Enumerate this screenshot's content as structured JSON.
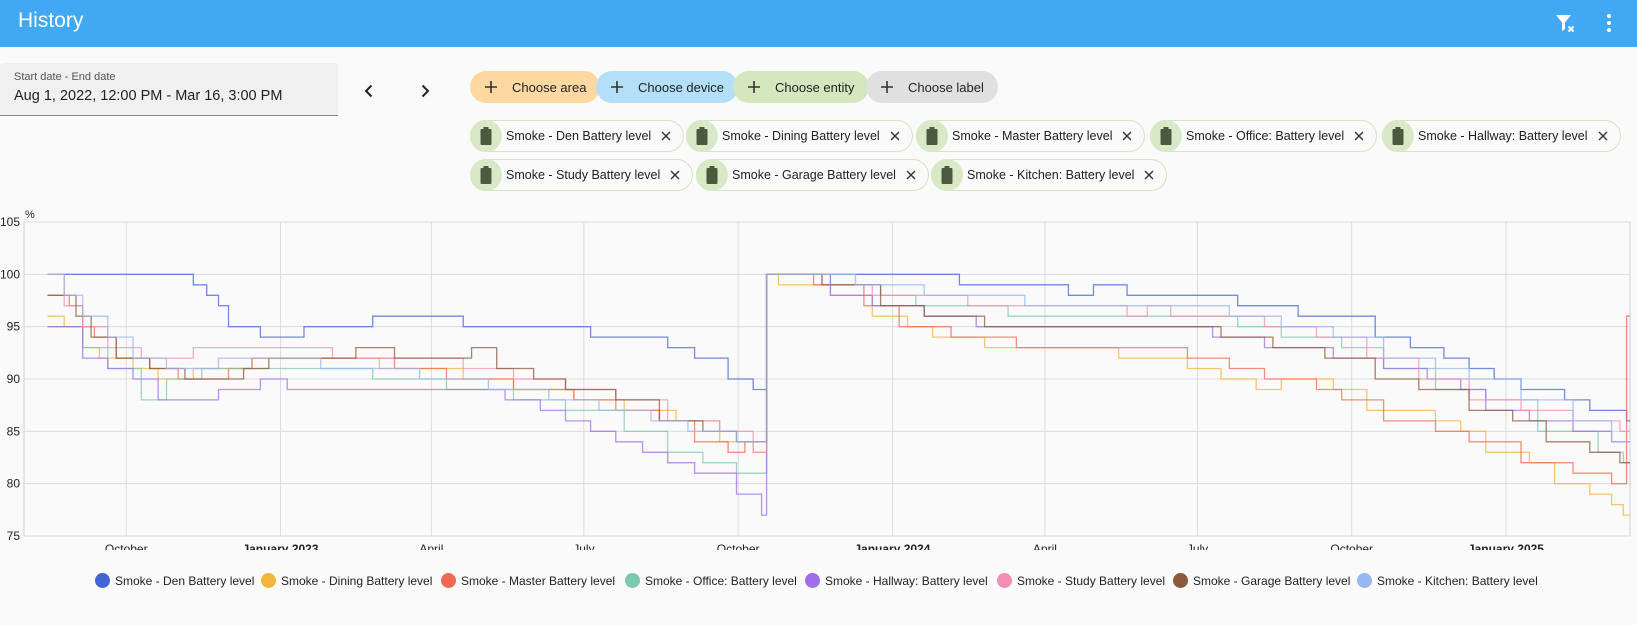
{
  "header": {
    "title": "History"
  },
  "date_range": {
    "label": "Start date - End date",
    "value": "Aug 1, 2022, 12:00 PM - Mar 16, 3:00 PM"
  },
  "choosers": [
    {
      "label": "Choose area",
      "color": "#fdd9a1"
    },
    {
      "label": "Choose device",
      "color": "#b3dff8"
    },
    {
      "label": "Choose entity",
      "color": "#d4e7be"
    },
    {
      "label": "Choose label",
      "color": "#e0e0e0"
    }
  ],
  "entities": [
    "Smoke - Den Battery level",
    "Smoke - Dining Battery level",
    "Smoke - Master Battery level",
    "Smoke - Office: Battery level",
    "Smoke - Hallway: Battery level",
    "Smoke - Study Battery level",
    "Smoke - Garage Battery level",
    "Smoke - Kitchen: Battery level"
  ],
  "chart_data": {
    "type": "line",
    "ylabel": "%",
    "ylim": [
      75,
      105
    ],
    "y_ticks": [
      "75",
      "80",
      "85",
      "90",
      "95",
      "100",
      "105"
    ],
    "xlim": [
      "2022-08-01",
      "2025-03-16"
    ],
    "x_ticks": [
      {
        "date": "2022-10-01",
        "label": "October",
        "bold": false
      },
      {
        "date": "2023-01-01",
        "label": "January 2023",
        "bold": true
      },
      {
        "date": "2023-04-01",
        "label": "April",
        "bold": false
      },
      {
        "date": "2023-07-01",
        "label": "July",
        "bold": false
      },
      {
        "date": "2023-10-01",
        "label": "October",
        "bold": false
      },
      {
        "date": "2024-01-01",
        "label": "January 2024",
        "bold": true
      },
      {
        "date": "2024-04-01",
        "label": "April",
        "bold": false
      },
      {
        "date": "2024-07-01",
        "label": "July",
        "bold": false
      },
      {
        "date": "2024-10-01",
        "label": "October",
        "bold": false
      },
      {
        "date": "2025-01-01",
        "label": "January 2025",
        "bold": true
      }
    ],
    "grid": true,
    "legend": "bottom",
    "series": [
      {
        "name": "Smoke - Den Battery level",
        "color": "#4464d6",
        "values": [
          [
            "2022-08-15",
            100
          ],
          [
            "2022-11-10",
            99
          ],
          [
            "2022-11-18",
            98
          ],
          [
            "2022-11-25",
            97
          ],
          [
            "2022-12-01",
            95
          ],
          [
            "2022-12-20",
            94
          ],
          [
            "2023-01-15",
            95
          ],
          [
            "2023-02-01",
            95
          ],
          [
            "2023-02-25",
            96
          ],
          [
            "2023-04-20",
            95
          ],
          [
            "2023-07-05",
            94
          ],
          [
            "2023-08-20",
            93
          ],
          [
            "2023-09-05",
            92
          ],
          [
            "2023-09-25",
            90
          ],
          [
            "2023-10-10",
            89
          ],
          [
            "2023-10-18",
            100
          ],
          [
            "2024-02-10",
            99
          ],
          [
            "2024-04-15",
            98
          ],
          [
            "2024-04-30",
            99
          ],
          [
            "2024-05-20",
            98
          ],
          [
            "2024-07-25",
            97
          ],
          [
            "2024-08-30",
            96
          ],
          [
            "2024-10-15",
            94
          ],
          [
            "2024-11-05",
            93
          ],
          [
            "2024-11-25",
            92
          ],
          [
            "2024-12-10",
            91
          ],
          [
            "2024-12-25",
            90
          ],
          [
            "2025-01-10",
            89
          ],
          [
            "2025-02-05",
            88
          ],
          [
            "2025-02-20",
            87
          ],
          [
            "2025-03-14",
            86
          ]
        ]
      },
      {
        "name": "Smoke - Dining Battery level",
        "color": "#f2b53d",
        "values": [
          [
            "2022-08-15",
            96
          ],
          [
            "2022-08-25",
            95
          ],
          [
            "2022-09-05",
            93
          ],
          [
            "2022-09-15",
            92
          ],
          [
            "2022-10-05",
            91
          ],
          [
            "2022-10-20",
            90
          ],
          [
            "2022-11-10",
            91
          ],
          [
            "2022-12-15",
            92
          ],
          [
            "2023-03-01",
            91
          ],
          [
            "2023-04-20",
            90
          ],
          [
            "2023-05-20",
            89
          ],
          [
            "2023-06-25",
            88
          ],
          [
            "2023-07-25",
            87
          ],
          [
            "2023-08-25",
            86
          ],
          [
            "2023-09-20",
            84
          ],
          [
            "2023-10-10",
            83
          ],
          [
            "2023-10-18",
            100
          ],
          [
            "2023-10-25",
            99
          ],
          [
            "2023-11-25",
            98
          ],
          [
            "2023-12-20",
            96
          ],
          [
            "2024-01-10",
            95
          ],
          [
            "2024-01-25",
            94
          ],
          [
            "2024-02-25",
            93
          ],
          [
            "2024-05-15",
            92
          ],
          [
            "2024-06-25",
            91
          ],
          [
            "2024-07-15",
            90
          ],
          [
            "2024-08-05",
            89
          ],
          [
            "2024-08-20",
            90
          ],
          [
            "2024-09-20",
            89
          ],
          [
            "2024-10-10",
            87
          ],
          [
            "2024-11-20",
            86
          ],
          [
            "2024-12-05",
            85
          ],
          [
            "2024-12-20",
            83
          ],
          [
            "2025-01-15",
            82
          ],
          [
            "2025-01-30",
            80
          ],
          [
            "2025-02-20",
            79
          ],
          [
            "2025-03-05",
            78
          ],
          [
            "2025-03-12",
            77
          ]
        ]
      },
      {
        "name": "Smoke - Master Battery level",
        "color": "#f06a53",
        "values": [
          [
            "2022-08-15",
            98
          ],
          [
            "2022-08-28",
            97
          ],
          [
            "2022-09-05",
            95
          ],
          [
            "2022-09-12",
            94
          ],
          [
            "2022-09-25",
            92
          ],
          [
            "2022-10-15",
            91
          ],
          [
            "2022-11-01",
            90
          ],
          [
            "2022-12-01",
            91
          ],
          [
            "2022-12-15",
            92
          ],
          [
            "2023-03-10",
            91
          ],
          [
            "2023-04-10",
            90
          ],
          [
            "2023-05-20",
            89
          ],
          [
            "2023-06-25",
            88
          ],
          [
            "2023-07-20",
            87
          ],
          [
            "2023-08-15",
            86
          ],
          [
            "2023-09-05",
            84
          ],
          [
            "2023-09-25",
            83
          ],
          [
            "2023-10-05",
            84
          ],
          [
            "2023-10-18",
            100
          ],
          [
            "2023-11-15",
            99
          ],
          [
            "2023-12-15",
            97
          ],
          [
            "2024-01-05",
            95
          ],
          [
            "2024-02-05",
            94
          ],
          [
            "2024-03-15",
            93
          ],
          [
            "2024-06-25",
            92
          ],
          [
            "2024-07-20",
            91
          ],
          [
            "2024-08-10",
            90
          ],
          [
            "2024-09-10",
            89
          ],
          [
            "2024-09-25",
            88
          ],
          [
            "2024-10-20",
            86
          ],
          [
            "2024-11-20",
            85
          ],
          [
            "2024-12-10",
            84
          ],
          [
            "2025-01-10",
            82
          ],
          [
            "2025-02-10",
            81
          ],
          [
            "2025-03-05",
            80
          ],
          [
            "2025-03-14",
            96
          ]
        ]
      },
      {
        "name": "Smoke - Office: Battery level",
        "color": "#7dc9ad",
        "values": [
          [
            "2022-08-15",
            95
          ],
          [
            "2022-09-05",
            93
          ],
          [
            "2022-09-20",
            91
          ],
          [
            "2022-10-10",
            88
          ],
          [
            "2022-10-25",
            90
          ],
          [
            "2022-11-15",
            91
          ],
          [
            "2023-02-25",
            90
          ],
          [
            "2023-04-10",
            89
          ],
          [
            "2023-05-20",
            88
          ],
          [
            "2023-06-20",
            87
          ],
          [
            "2023-07-25",
            85
          ],
          [
            "2023-08-20",
            83
          ],
          [
            "2023-09-10",
            82
          ],
          [
            "2023-09-30",
            81
          ],
          [
            "2023-10-18",
            100
          ],
          [
            "2023-11-25",
            99
          ],
          [
            "2023-12-25",
            98
          ],
          [
            "2024-01-15",
            97
          ],
          [
            "2024-03-10",
            96
          ],
          [
            "2024-07-25",
            95
          ],
          [
            "2024-08-20",
            94
          ],
          [
            "2024-09-25",
            93
          ],
          [
            "2024-10-20",
            91
          ],
          [
            "2024-11-20",
            89
          ],
          [
            "2024-12-20",
            88
          ],
          [
            "2025-01-20",
            85
          ],
          [
            "2025-02-25",
            83
          ],
          [
            "2025-03-12",
            82
          ]
        ]
      },
      {
        "name": "Smoke - Hallway: Battery level",
        "color": "#a06ee6",
        "values": [
          [
            "2022-08-15",
            95
          ],
          [
            "2022-09-05",
            92
          ],
          [
            "2022-09-20",
            91
          ],
          [
            "2022-10-05",
            90
          ],
          [
            "2022-10-20",
            88
          ],
          [
            "2022-11-25",
            89
          ],
          [
            "2022-12-20",
            90
          ],
          [
            "2023-01-05",
            89
          ],
          [
            "2023-05-15",
            88
          ],
          [
            "2023-06-05",
            87
          ],
          [
            "2023-06-20",
            86
          ],
          [
            "2023-07-05",
            85
          ],
          [
            "2023-07-20",
            84
          ],
          [
            "2023-08-05",
            83
          ],
          [
            "2023-08-20",
            82
          ],
          [
            "2023-09-05",
            81
          ],
          [
            "2023-09-30",
            79
          ],
          [
            "2023-10-15",
            77
          ],
          [
            "2023-10-18",
            100
          ],
          [
            "2023-11-25",
            98
          ],
          [
            "2023-12-20",
            97
          ],
          [
            "2024-01-20",
            96
          ],
          [
            "2024-02-20",
            95
          ],
          [
            "2024-07-10",
            94
          ],
          [
            "2024-08-10",
            93
          ],
          [
            "2024-09-20",
            92
          ],
          [
            "2024-10-20",
            91
          ],
          [
            "2024-11-15",
            90
          ],
          [
            "2024-12-05",
            89
          ],
          [
            "2024-12-20",
            87
          ],
          [
            "2025-01-15",
            86
          ],
          [
            "2025-02-10",
            85
          ],
          [
            "2025-03-05",
            84
          ]
        ]
      },
      {
        "name": "Smoke - Study Battery level",
        "color": "#f28eb5",
        "values": [
          [
            "2022-08-15",
            100
          ],
          [
            "2022-08-25",
            97
          ],
          [
            "2022-09-05",
            95
          ],
          [
            "2022-09-20",
            93
          ],
          [
            "2022-10-10",
            92
          ],
          [
            "2022-11-10",
            93
          ],
          [
            "2023-02-01",
            92
          ],
          [
            "2023-04-20",
            91
          ],
          [
            "2023-05-20",
            90
          ],
          [
            "2023-06-20",
            89
          ],
          [
            "2023-07-20",
            88
          ],
          [
            "2023-08-20",
            86
          ],
          [
            "2023-09-20",
            85
          ],
          [
            "2023-10-10",
            83
          ],
          [
            "2023-10-18",
            100
          ],
          [
            "2023-11-20",
            99
          ],
          [
            "2023-12-20",
            98
          ],
          [
            "2024-02-15",
            97
          ],
          [
            "2024-05-20",
            96
          ],
          [
            "2024-06-01",
            97
          ],
          [
            "2024-06-15",
            96
          ],
          [
            "2024-08-10",
            95
          ],
          [
            "2024-09-10",
            94
          ],
          [
            "2024-10-10",
            92
          ],
          [
            "2024-11-10",
            90
          ],
          [
            "2024-12-10",
            88
          ],
          [
            "2025-01-10",
            87
          ],
          [
            "2025-02-10",
            86
          ],
          [
            "2025-03-10",
            85
          ]
        ]
      },
      {
        "name": "Smoke - Garage Battery level",
        "color": "#8c5a3c",
        "values": [
          [
            "2022-08-15",
            98
          ],
          [
            "2022-09-01",
            96
          ],
          [
            "2022-09-10",
            94
          ],
          [
            "2022-09-25",
            92
          ],
          [
            "2022-10-15",
            91
          ],
          [
            "2022-11-05",
            90
          ],
          [
            "2022-12-10",
            91
          ],
          [
            "2022-12-25",
            92
          ],
          [
            "2023-02-15",
            93
          ],
          [
            "2023-03-10",
            92
          ],
          [
            "2023-04-25",
            93
          ],
          [
            "2023-05-10",
            91
          ],
          [
            "2023-06-01",
            90
          ],
          [
            "2023-06-20",
            89
          ],
          [
            "2023-07-20",
            88
          ],
          [
            "2023-08-15",
            86
          ],
          [
            "2023-09-10",
            85
          ],
          [
            "2023-09-30",
            84
          ],
          [
            "2023-10-18",
            100
          ],
          [
            "2023-11-20",
            99
          ],
          [
            "2023-12-25",
            97
          ],
          [
            "2024-01-20",
            96
          ],
          [
            "2024-02-25",
            95
          ],
          [
            "2024-07-15",
            94
          ],
          [
            "2024-08-15",
            93
          ],
          [
            "2024-09-15",
            92
          ],
          [
            "2024-10-15",
            90
          ],
          [
            "2024-11-10",
            89
          ],
          [
            "2024-12-10",
            87
          ],
          [
            "2025-01-05",
            86
          ],
          [
            "2025-01-25",
            84
          ],
          [
            "2025-02-20",
            83
          ],
          [
            "2025-03-10",
            82
          ]
        ]
      },
      {
        "name": "Smoke - Kitchen: Battery level",
        "color": "#98b6f0",
        "values": [
          [
            "2022-08-15",
            100
          ],
          [
            "2022-08-25",
            98
          ],
          [
            "2022-09-05",
            96
          ],
          [
            "2022-09-20",
            94
          ],
          [
            "2022-10-05",
            92
          ],
          [
            "2022-10-25",
            91
          ],
          [
            "2022-11-25",
            92
          ],
          [
            "2023-01-25",
            91
          ],
          [
            "2023-03-25",
            90
          ],
          [
            "2023-05-05",
            89
          ],
          [
            "2023-06-10",
            88
          ],
          [
            "2023-07-10",
            87
          ],
          [
            "2023-08-10",
            86
          ],
          [
            "2023-09-01",
            85
          ],
          [
            "2023-09-30",
            84
          ],
          [
            "2023-10-18",
            100
          ],
          [
            "2023-12-10",
            99
          ],
          [
            "2024-01-20",
            98
          ],
          [
            "2024-03-20",
            97
          ],
          [
            "2024-07-20",
            96
          ],
          [
            "2024-08-20",
            95
          ],
          [
            "2024-09-20",
            94
          ],
          [
            "2024-10-20",
            92
          ],
          [
            "2024-11-20",
            91
          ],
          [
            "2024-12-10",
            90
          ],
          [
            "2025-01-10",
            88
          ],
          [
            "2025-02-10",
            86
          ],
          [
            "2025-03-05",
            84
          ]
        ]
      }
    ]
  }
}
